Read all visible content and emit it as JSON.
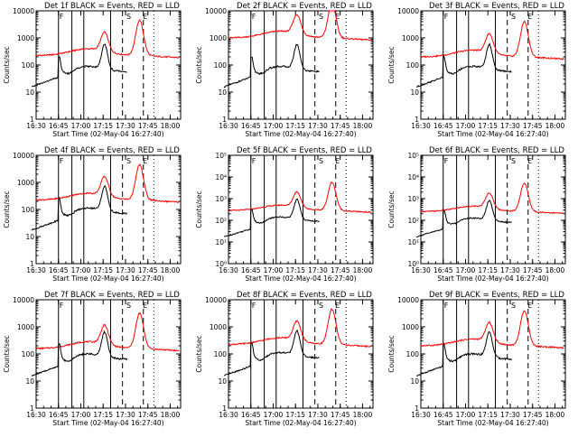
{
  "chart_data": [
    {
      "title": "Det 1f BLACK = Events, RED = LLD",
      "ymin_exp": 0,
      "ymax_exp": 4,
      "red_level": 2.35,
      "black_level": 1.75,
      "black_start": 1.25
    },
    {
      "title": "Det 2f BLACK = Events, RED = LLD",
      "ymin_exp": 0,
      "ymax_exp": 4,
      "red_level": 3.0,
      "black_level": 1.75,
      "black_start": 1.25
    },
    {
      "title": "Det 3f BLACK = Events, RED = LLD",
      "ymin_exp": 0,
      "ymax_exp": 4,
      "red_level": 2.3,
      "black_level": 1.75,
      "black_start": 1.25
    },
    {
      "title": "Det 4f BLACK = Events, RED = LLD",
      "ymin_exp": 0,
      "ymax_exp": 4,
      "red_level": 2.35,
      "black_level": 1.85,
      "black_start": 1.3
    },
    {
      "title": "Det 5f BLACK = Events, RED = LLD",
      "ymin_exp": 0,
      "ymax_exp": 5,
      "red_level": 2.45,
      "black_level": 1.95,
      "black_start": 1.3
    },
    {
      "title": "Det 6f BLACK = Events, RED = LLD",
      "ymin_exp": 0,
      "ymax_exp": 5,
      "red_level": 2.4,
      "black_level": 1.9,
      "black_start": 1.3
    },
    {
      "title": "Det 7f BLACK = Events, RED = LLD",
      "ymin_exp": 0,
      "ymax_exp": 4,
      "red_level": 2.2,
      "black_level": 1.8,
      "black_start": 1.25
    },
    {
      "title": "Det 8f BLACK = Events, RED = LLD",
      "ymin_exp": 0,
      "ymax_exp": 4,
      "red_level": 2.35,
      "black_level": 1.85,
      "black_start": 1.25
    },
    {
      "title": "Det 9f BLACK = Events, RED = LLD",
      "ymin_exp": 0,
      "ymax_exp": 4,
      "red_level": 2.3,
      "black_level": 1.8,
      "black_start": 1.25
    }
  ],
  "common": {
    "type": "line",
    "ylabel": "Counts/sec",
    "xlabel": "Start Time (02-May-04 16:27:40)",
    "xticks": [
      "16:30",
      "16:45",
      "17:00",
      "17:15",
      "17:30",
      "17:45",
      "18:00"
    ],
    "xtick_minutes": [
      0,
      15,
      30,
      45,
      60,
      75,
      90
    ],
    "x_range_minutes": [
      0,
      97
    ],
    "y_scale": "log",
    "solid_markers_minutes": [
      15,
      24,
      32,
      50
    ],
    "dashed_markers_minutes": [
      58,
      72
    ],
    "dotted_markers_minutes": [
      79
    ],
    "marker_letters": [
      {
        "minute": 15,
        "text": "F"
      },
      {
        "minute": 60,
        "text": "S"
      },
      {
        "minute": 71,
        "text": "E"
      }
    ],
    "colors": {
      "events": "#000000",
      "lld": "#ff0000"
    }
  }
}
